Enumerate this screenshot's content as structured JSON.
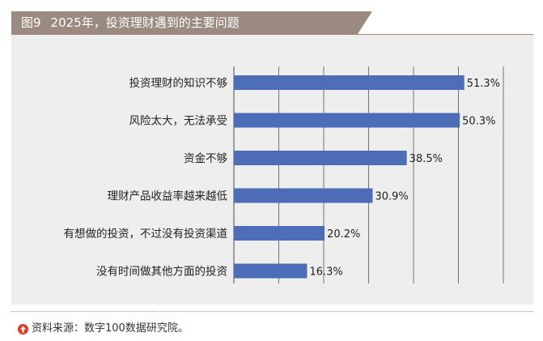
{
  "header": {
    "figure_no": "图9",
    "title_text": "2025年，投资理财遇到的主要问题"
  },
  "source": {
    "text": "资料来源：数字100数据研究院。"
  },
  "colors": {
    "bar": "#4e6db8",
    "header_bg": "#9a8a80",
    "panel_bg": "#eeeeee",
    "source_icon": "#e03a24"
  },
  "chart_data": {
    "type": "bar",
    "orientation": "horizontal",
    "categories": [
      "投资理财的知识不够",
      "风险太大，无法承受",
      "资金不够",
      "理财产品收益率越来越低",
      "有想做的投资，不过没有投资渠道",
      "没有时间做其他方面的投资"
    ],
    "values": [
      51.3,
      50.3,
      38.5,
      30.9,
      20.2,
      16.3
    ],
    "value_labels": [
      "51.3%",
      "50.3%",
      "38.5%",
      "30.9%",
      "20.2%",
      "16.3%"
    ],
    "xlim": [
      0,
      60
    ],
    "grid": true,
    "title": "2025年，投资理财遇到的主要问题"
  }
}
